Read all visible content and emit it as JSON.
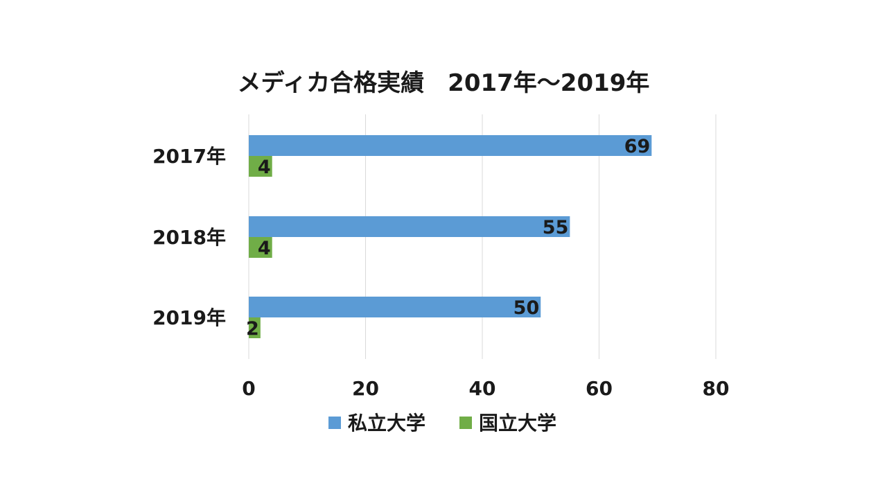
{
  "chart_data": {
    "type": "bar",
    "orientation": "horizontal",
    "title": "メディカ合格実績　2017年～2019年",
    "categories": [
      "2017年",
      "2018年",
      "2019年"
    ],
    "series": [
      {
        "name": "私立大学",
        "values": [
          69,
          55,
          50
        ],
        "color": "#5b9bd5"
      },
      {
        "name": "国立大学",
        "values": [
          4,
          4,
          2
        ],
        "color": "#70ad47"
      }
    ],
    "xlim": [
      0,
      80
    ],
    "xticks": [
      "0",
      "20",
      "40",
      "60",
      "80"
    ],
    "grid": true,
    "legend": "bottom",
    "data_labels": true
  }
}
